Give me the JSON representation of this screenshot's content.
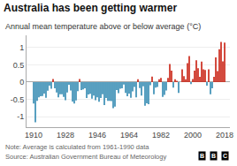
{
  "chart_data": {
    "type": "bar",
    "title": "Australia has been getting warmer",
    "subtitle": "Annual mean temperature above or below average (°C)",
    "annotations": [
      "Note: Average is calculated from 1961-1990 data",
      "Source: Australian Government Bureau of Meteorology"
    ],
    "logo": [
      "B",
      "B",
      "C"
    ],
    "x": [
      1910,
      1911,
      1912,
      1913,
      1914,
      1915,
      1916,
      1917,
      1918,
      1919,
      1920,
      1921,
      1922,
      1923,
      1924,
      1925,
      1926,
      1927,
      1928,
      1929,
      1930,
      1931,
      1932,
      1933,
      1934,
      1935,
      1936,
      1937,
      1938,
      1939,
      1940,
      1941,
      1942,
      1943,
      1944,
      1945,
      1946,
      1947,
      1948,
      1949,
      1950,
      1951,
      1952,
      1953,
      1954,
      1955,
      1956,
      1957,
      1958,
      1959,
      1960,
      1961,
      1962,
      1963,
      1964,
      1965,
      1966,
      1967,
      1968,
      1969,
      1970,
      1971,
      1972,
      1973,
      1974,
      1975,
      1976,
      1977,
      1978,
      1979,
      1980,
      1981,
      1982,
      1983,
      1984,
      1985,
      1986,
      1987,
      1988,
      1989,
      1990,
      1991,
      1992,
      1993,
      1994,
      1995,
      1996,
      1997,
      1998,
      1999,
      2000,
      2001,
      2002,
      2003,
      2004,
      2005,
      2006,
      2007,
      2008,
      2009,
      2010,
      2011,
      2012,
      2013,
      2014,
      2015,
      2016,
      2017,
      2018
    ],
    "values": [
      -0.62,
      -1.16,
      -0.54,
      -0.44,
      -0.41,
      -0.4,
      -0.33,
      -0.45,
      -0.25,
      -0.1,
      -0.19,
      0.09,
      -0.18,
      -0.3,
      -0.44,
      -0.35,
      -0.35,
      -0.43,
      -0.52,
      -0.3,
      -0.08,
      -0.24,
      -0.56,
      -0.62,
      -0.53,
      -0.26,
      0.09,
      -0.23,
      -0.21,
      -0.18,
      -0.46,
      -0.36,
      -0.34,
      -0.48,
      -0.39,
      -0.52,
      -0.44,
      -0.57,
      -0.46,
      -0.35,
      -0.66,
      -0.46,
      -0.54,
      -0.54,
      -0.55,
      -0.75,
      -0.71,
      -0.23,
      -0.32,
      -0.19,
      -0.18,
      -0.07,
      -0.31,
      -0.41,
      -0.33,
      -0.45,
      -0.27,
      -0.14,
      -0.44,
      0.08,
      -0.17,
      -0.39,
      -0.12,
      -0.68,
      -0.61,
      -0.64,
      -0.09,
      0.16,
      -0.35,
      -0.16,
      -0.14,
      0.08,
      0.12,
      -0.43,
      -0.37,
      -0.24,
      0.12,
      0.52,
      0.33,
      -0.16,
      0.08,
      0.04,
      -0.31,
      0.0,
      0.37,
      0.17,
      0.08,
      0.55,
      0.75,
      -0.06,
      0.09,
      0.33,
      0.63,
      0.4,
      0.15,
      0.59,
      0.37,
      0.35,
      -0.1,
      0.37,
      -0.35,
      -0.18,
      0.15,
      0.71,
      0.32,
      0.95,
      1.16,
      0.6,
      1.14
    ],
    "colors": [
      "#3b8fb5",
      "#3b8fb5",
      "#3b8fb5",
      "#3b8fb5",
      "#3b8fb5",
      "#3b8fb5",
      "#3b8fb5",
      "#3b8fb5",
      "#3b8fb5",
      "#3b8fb5",
      "#3b8fb5",
      "#cc2b1d",
      "#3b8fb5",
      "#3b8fb5",
      "#3b8fb5",
      "#3b8fb5",
      "#3b8fb5",
      "#3b8fb5",
      "#3b8fb5",
      "#3b8fb5",
      "#3b8fb5",
      "#3b8fb5",
      "#3b8fb5",
      "#3b8fb5",
      "#3b8fb5",
      "#3b8fb5",
      "#cc2b1d",
      "#3b8fb5",
      "#3b8fb5",
      "#3b8fb5",
      "#3b8fb5",
      "#3b8fb5",
      "#3b8fb5",
      "#3b8fb5",
      "#3b8fb5",
      "#3b8fb5",
      "#3b8fb5",
      "#3b8fb5",
      "#3b8fb5",
      "#3b8fb5",
      "#3b8fb5",
      "#3b8fb5",
      "#3b8fb5",
      "#3b8fb5",
      "#3b8fb5",
      "#3b8fb5",
      "#3b8fb5",
      "#3b8fb5",
      "#3b8fb5",
      "#3b8fb5",
      "#3b8fb5",
      "#3b8fb5",
      "#3b8fb5",
      "#3b8fb5",
      "#3b8fb5",
      "#3b8fb5",
      "#3b8fb5",
      "#3b8fb5",
      "#3b8fb5",
      "#cc2b1d",
      "#3b8fb5",
      "#3b8fb5",
      "#3b8fb5",
      "#3b8fb5",
      "#3b8fb5",
      "#3b8fb5",
      "#3b8fb5",
      "#cc2b1d",
      "#3b8fb5",
      "#3b8fb5",
      "#3b8fb5",
      "#cc2b1d",
      "#cc2b1d",
      "#3b8fb5",
      "#3b8fb5",
      "#3b8fb5",
      "#cc2b1d",
      "#cc2b1d",
      "#cc2b1d",
      "#3b8fb5",
      "#cc2b1d",
      "#cc2b1d",
      "#3b8fb5",
      "#cc2b1d",
      "#cc2b1d",
      "#cc2b1d",
      "#cc2b1d",
      "#cc2b1d",
      "#cc2b1d",
      "#3b8fb5",
      "#cc2b1d",
      "#cc2b1d",
      "#cc2b1d",
      "#cc2b1d",
      "#cc2b1d",
      "#cc2b1d",
      "#cc2b1d",
      "#cc2b1d",
      "#3b8fb5",
      "#cc2b1d",
      "#3b8fb5",
      "#3b8fb5",
      "#cc2b1d",
      "#cc2b1d",
      "#cc2b1d",
      "#cc2b1d",
      "#cc2b1d",
      "#cc2b1d",
      "#cc2b1d"
    ],
    "xlim": [
      1906,
      2021
    ],
    "xticks": [
      1910,
      1928,
      1946,
      1964,
      1982,
      2000,
      2018
    ],
    "ylim": [
      -1.3,
      1.35
    ],
    "yticks": [
      -1,
      -0.5,
      0,
      0.5,
      1
    ],
    "grid": true
  }
}
